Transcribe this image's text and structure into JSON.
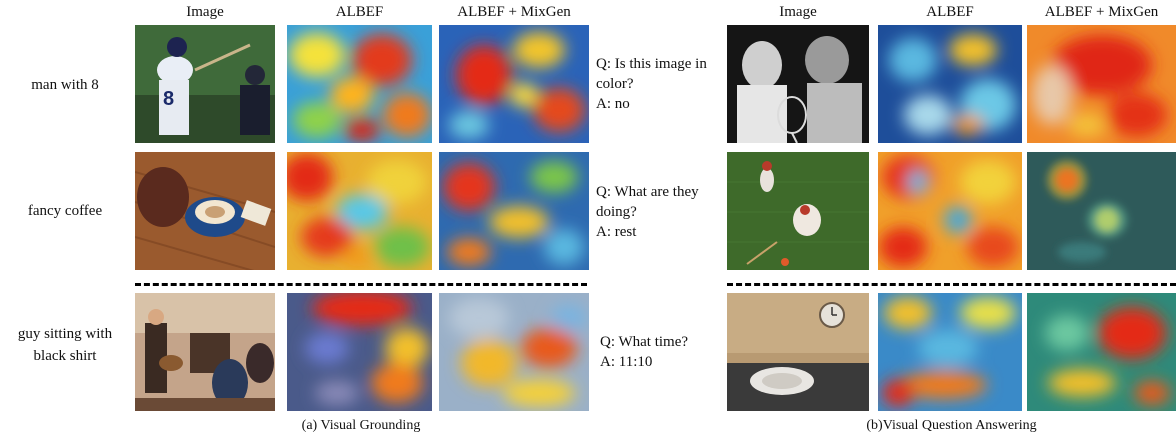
{
  "left": {
    "headers": [
      "Image",
      "ALBEF",
      "ALBEF + MixGen"
    ],
    "rows": [
      {
        "query": "man with 8"
      },
      {
        "query": "fancy coffee"
      },
      {
        "query": "guy sitting with black shirt"
      }
    ],
    "caption": "(a) Visual Grounding"
  },
  "right": {
    "headers": [
      "Image",
      "ALBEF",
      "ALBEF + MixGen"
    ],
    "rows": [
      {
        "question": "Q: Is this image in color?",
        "answer": "A: no"
      },
      {
        "question": "Q: What are they doing?",
        "answer": "A: rest"
      },
      {
        "question": "Q: What time?",
        "answer": "A: 11:10"
      }
    ],
    "caption": "(b)Visual Question Answering"
  }
}
